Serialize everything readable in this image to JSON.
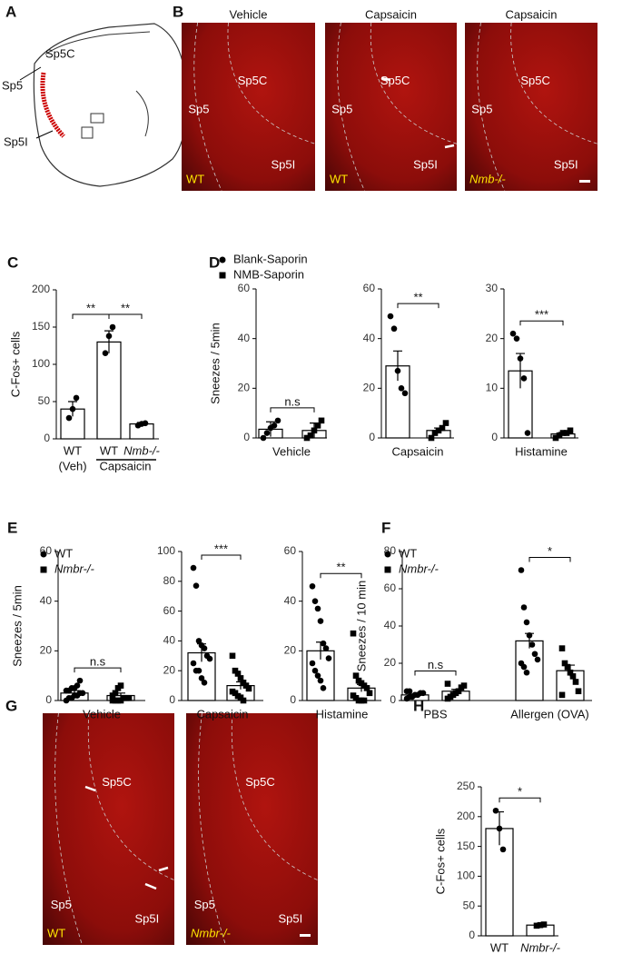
{
  "figure": {
    "A": {
      "panel": "A",
      "labels": [
        "Sp5",
        "Sp5C",
        "Sp5I"
      ]
    },
    "B": {
      "panel": "B",
      "images": [
        {
          "title": "Vehicle",
          "labels": [
            "Sp5",
            "Sp5C",
            "Sp5I"
          ],
          "genotype": "WT"
        },
        {
          "title": "Capsaicin",
          "labels": [
            "Sp5",
            "Sp5C",
            "Sp5I"
          ],
          "genotype": "WT"
        },
        {
          "title": "Capsaicin",
          "labels": [
            "Sp5",
            "Sp5C",
            "Sp5I"
          ],
          "genotype": "Nmb-/-"
        }
      ]
    },
    "G": {
      "panel": "G",
      "images": [
        {
          "labels": [
            "Sp5",
            "Sp5C",
            "Sp5I"
          ],
          "genotype": "WT"
        },
        {
          "labels": [
            "Sp5",
            "Sp5C",
            "Sp5I"
          ],
          "genotype": "Nmbr-/-"
        }
      ]
    }
  },
  "chart_data": [
    {
      "type": "bar",
      "panel": "C",
      "ylabel": "C-Fos+ cells",
      "ylim": [
        0,
        200
      ],
      "yticks": [
        0,
        50,
        100,
        150,
        200
      ],
      "categories": [
        "WT",
        "WT",
        "Nmb-/-"
      ],
      "sublabels": [
        "(Veh)",
        "Capsaicin"
      ],
      "values": [
        40,
        130,
        20
      ],
      "errors": [
        10,
        15,
        2
      ],
      "points": [
        [
          28,
          40,
          55
        ],
        [
          115,
          138,
          150
        ],
        [
          18,
          20,
          21
        ]
      ],
      "markers": [
        "circle",
        "circle",
        "circle"
      ],
      "significance": [
        {
          "from": 0,
          "to": 1,
          "label": "**"
        },
        {
          "from": 1,
          "to": 2,
          "label": "**"
        }
      ]
    },
    {
      "type": "bar",
      "panel": "D",
      "ylabel": "Sneezes / 5min",
      "xlabel": "Vehicle",
      "ylim": [
        0,
        60
      ],
      "yticks": [
        0,
        20,
        40,
        60
      ],
      "values": [
        3.5,
        3
      ],
      "errors": [
        3,
        3
      ],
      "points": [
        [
          0,
          2,
          4,
          5,
          7
        ],
        [
          0,
          1,
          3,
          5,
          7
        ]
      ],
      "markers": [
        "circle",
        "square"
      ],
      "significance": [
        {
          "from": 0,
          "to": 1,
          "label": "n.s"
        }
      ],
      "legend": [
        {
          "name": "Blank-Saporin",
          "marker": "circle"
        },
        {
          "name": "NMB-Saporin",
          "marker": "square"
        }
      ]
    },
    {
      "type": "bar",
      "xlabel": "Capsaicin",
      "ylim": [
        0,
        60
      ],
      "yticks": [
        0,
        20,
        40,
        60
      ],
      "values": [
        29,
        3
      ],
      "errors": [
        6,
        1
      ],
      "points": [
        [
          49,
          44,
          27,
          20,
          18
        ],
        [
          0,
          2,
          3,
          4,
          6
        ]
      ],
      "markers": [
        "circle",
        "square"
      ],
      "significance": [
        {
          "from": 0,
          "to": 1,
          "label": "**"
        }
      ]
    },
    {
      "type": "bar",
      "xlabel": "Histamine",
      "ylim": [
        0,
        30
      ],
      "yticks": [
        0,
        10,
        20,
        30
      ],
      "values": [
        13.5,
        0.8
      ],
      "errors": [
        3.5,
        0.3
      ],
      "points": [
        [
          21,
          20,
          16,
          12,
          1
        ],
        [
          0,
          0.5,
          1,
          1,
          1.5
        ]
      ],
      "markers": [
        "circle",
        "square"
      ],
      "significance": [
        {
          "from": 0,
          "to": 1,
          "label": "***"
        }
      ]
    },
    {
      "type": "bar",
      "panel": "E",
      "ylabel": "Sneezes / 5min",
      "xlabel": "Vehicle",
      "ylim": [
        0,
        60
      ],
      "yticks": [
        0,
        20,
        40,
        60
      ],
      "values": [
        3,
        2
      ],
      "errors": [
        1,
        1
      ],
      "points": [
        [
          0,
          1,
          1,
          2,
          2,
          3,
          3,
          4,
          4,
          5,
          5,
          6,
          8
        ],
        [
          0,
          0,
          0,
          0,
          1,
          1,
          1,
          2,
          3,
          5,
          6
        ]
      ],
      "markers": [
        "circle",
        "square"
      ],
      "significance": [
        {
          "from": 0,
          "to": 1,
          "label": "n.s"
        }
      ],
      "legend": [
        {
          "name": "WT",
          "marker": "circle"
        },
        {
          "name": "Nmbr-/-",
          "marker": "square"
        }
      ]
    },
    {
      "type": "bar",
      "xlabel": "Capsaicin",
      "ylim": [
        0,
        100
      ],
      "yticks": [
        0,
        20,
        40,
        60,
        80,
        100
      ],
      "values": [
        32,
        10
      ],
      "errors": [
        6,
        2.5
      ],
      "points": [
        [
          89,
          77,
          40,
          37,
          35,
          30,
          28,
          25,
          20,
          20,
          15,
          12
        ],
        [
          30,
          20,
          18,
          15,
          12,
          10,
          8,
          6,
          5,
          3,
          2,
          0
        ]
      ],
      "markers": [
        "circle",
        "square"
      ],
      "significance": [
        {
          "from": 0,
          "to": 1,
          "label": "***"
        }
      ]
    },
    {
      "type": "bar",
      "xlabel": "Histamine",
      "ylim": [
        0,
        60
      ],
      "yticks": [
        0,
        20,
        40,
        60
      ],
      "values": [
        20,
        5
      ],
      "errors": [
        3.5,
        1.5
      ],
      "points": [
        [
          46,
          40,
          37,
          32,
          23,
          21,
          17,
          15,
          12,
          10,
          8,
          5
        ],
        [
          27,
          10,
          8,
          7,
          6,
          5,
          3,
          2,
          1,
          0,
          0,
          0
        ]
      ],
      "markers": [
        "circle",
        "square"
      ],
      "significance": [
        {
          "from": 0,
          "to": 1,
          "label": "**"
        }
      ]
    },
    {
      "type": "bar",
      "panel": "F",
      "ylabel": "Sneezes / 10 min",
      "ylim": [
        0,
        80
      ],
      "yticks": [
        0,
        20,
        40,
        60,
        80
      ],
      "groups": [
        "PBS",
        "Allergen (OVA)"
      ],
      "values": [
        3,
        5,
        32,
        16
      ],
      "errors": [
        0.5,
        1,
        4,
        3
      ],
      "points": [
        [
          1,
          2,
          2,
          3,
          3,
          4,
          4,
          5,
          5
        ],
        [
          1,
          2,
          3,
          4,
          5,
          7,
          8,
          9
        ],
        [
          70,
          50,
          42,
          35,
          30,
          25,
          22,
          20,
          18,
          15
        ],
        [
          28,
          20,
          18,
          15,
          13,
          10,
          5,
          3
        ]
      ],
      "markers": [
        "circle",
        "square",
        "circle",
        "square"
      ],
      "significance": [
        {
          "from": 0,
          "to": 1,
          "label": "n.s"
        },
        {
          "from": 2,
          "to": 3,
          "label": "*"
        }
      ],
      "legend": [
        {
          "name": "WT",
          "marker": "circle"
        },
        {
          "name": "Nmbr-/-",
          "marker": "square"
        }
      ]
    },
    {
      "type": "bar",
      "panel": "H",
      "ylabel": "C-Fos+ cells",
      "ylim": [
        0,
        250
      ],
      "yticks": [
        0,
        50,
        100,
        150,
        200,
        250
      ],
      "categories": [
        "WT",
        "Nmbr-/-"
      ],
      "values": [
        180,
        18
      ],
      "errors": [
        28,
        2
      ],
      "points": [
        [
          210,
          180,
          145
        ],
        [
          17,
          18,
          19
        ]
      ],
      "markers": [
        "circle",
        "square"
      ],
      "significance": [
        {
          "from": 0,
          "to": 1,
          "label": "*"
        }
      ]
    }
  ]
}
